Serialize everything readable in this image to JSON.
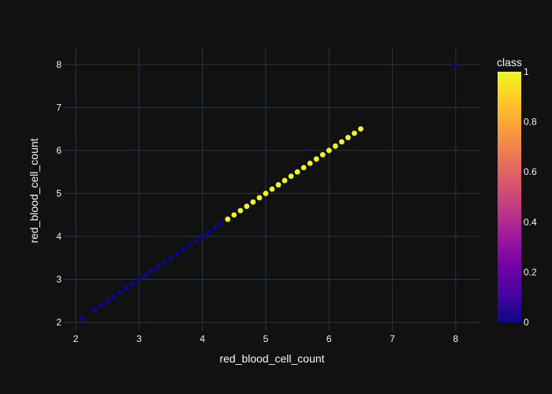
{
  "chart_data": {
    "type": "scatter",
    "title": "",
    "xlabel": "red_blood_cell_count",
    "ylabel": "red_blood_cell_count",
    "xlim": [
      1.8,
      8.4
    ],
    "ylim": [
      1.8,
      8.4
    ],
    "x_ticks": [
      2,
      3,
      4,
      5,
      6,
      7,
      8
    ],
    "y_ticks": [
      2,
      3,
      4,
      5,
      6,
      7,
      8
    ],
    "grid": true,
    "colorbar": {
      "title": "class",
      "range": [
        0,
        1
      ],
      "ticks": [
        "0",
        "0.2",
        "0.4",
        "0.6",
        "0.8",
        "1"
      ],
      "colorscale": [
        "#0d0887",
        "#46039f",
        "#7201a8",
        "#9c179e",
        "#bd3786",
        "#d8576b",
        "#ed7953",
        "#fb9f3a",
        "#fdca26",
        "#f0f921"
      ]
    },
    "series": [
      {
        "class": 0,
        "color": "#0d0887",
        "x": [
          2.1,
          2.3,
          2.4,
          2.5,
          2.6,
          2.7,
          2.8,
          2.9,
          3.0,
          3.1,
          3.2,
          3.3,
          3.4,
          3.5,
          3.6,
          3.7,
          3.8,
          3.9,
          4.0,
          4.1,
          4.2,
          4.3,
          8.0
        ],
        "y": [
          2.1,
          2.3,
          2.4,
          2.5,
          2.6,
          2.7,
          2.8,
          2.9,
          3.0,
          3.1,
          3.2,
          3.3,
          3.4,
          3.5,
          3.6,
          3.7,
          3.8,
          3.9,
          4.0,
          4.1,
          4.2,
          4.3,
          8.0
        ]
      },
      {
        "class": 1,
        "color": "#f0f921",
        "x": [
          4.4,
          4.5,
          4.6,
          4.7,
          4.8,
          4.9,
          5.0,
          5.1,
          5.2,
          5.3,
          5.4,
          5.5,
          5.6,
          5.7,
          5.8,
          5.9,
          6.0,
          6.1,
          6.2,
          6.3,
          6.4,
          6.5
        ],
        "y": [
          4.4,
          4.5,
          4.6,
          4.7,
          4.8,
          4.9,
          5.0,
          5.1,
          5.2,
          5.3,
          5.4,
          5.5,
          5.6,
          5.7,
          5.8,
          5.9,
          6.0,
          6.1,
          6.2,
          6.3,
          6.4,
          6.5
        ]
      }
    ]
  }
}
